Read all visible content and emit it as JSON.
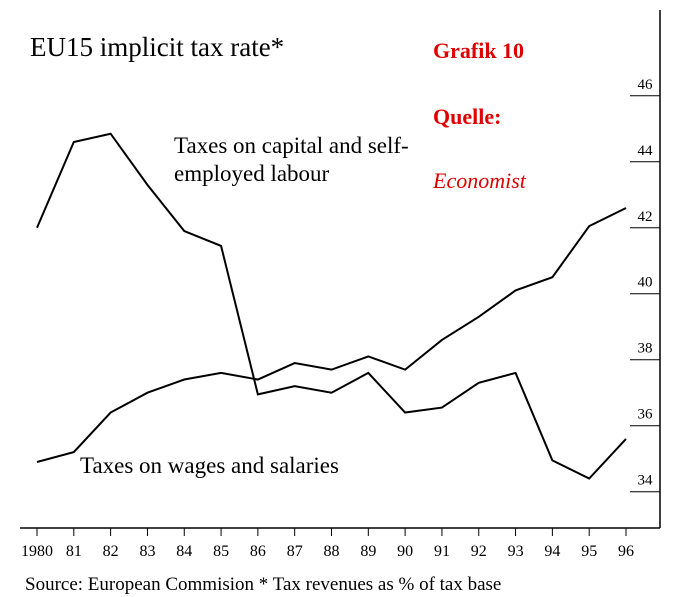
{
  "chart_data": {
    "type": "line",
    "title": "EU15 implicit tax rate*",
    "annotations": [
      "Grafik 10",
      "Quelle:",
      "Economist"
    ],
    "source": "Source: European Commision   * Tax revenues as % of tax base",
    "categories": [
      "1980",
      "81",
      "82",
      "83",
      "84",
      "85",
      "86",
      "87",
      "88",
      "89",
      "90",
      "91",
      "92",
      "93",
      "94",
      "95",
      "96"
    ],
    "series": [
      {
        "name": "Taxes on capital and self-employed labour",
        "color": "#000000",
        "values": [
          42.0,
          44.6,
          44.85,
          43.3,
          41.9,
          41.45,
          36.95,
          37.2,
          37.0,
          37.6,
          36.4,
          36.55,
          37.3,
          37.6,
          34.95,
          34.4,
          35.6
        ]
      },
      {
        "name": "Taxes on wages and salaries",
        "color": "#000000",
        "values": [
          34.9,
          35.2,
          36.4,
          37.0,
          37.4,
          37.6,
          37.4,
          37.9,
          37.7,
          38.1,
          37.7,
          38.6,
          39.3,
          40.1,
          40.5,
          42.05,
          42.6
        ]
      }
    ],
    "ylim": [
      32.9,
      48.6
    ],
    "yticks": [
      34,
      36,
      38,
      40,
      42,
      44,
      46
    ],
    "y_axis_side": "right"
  }
}
